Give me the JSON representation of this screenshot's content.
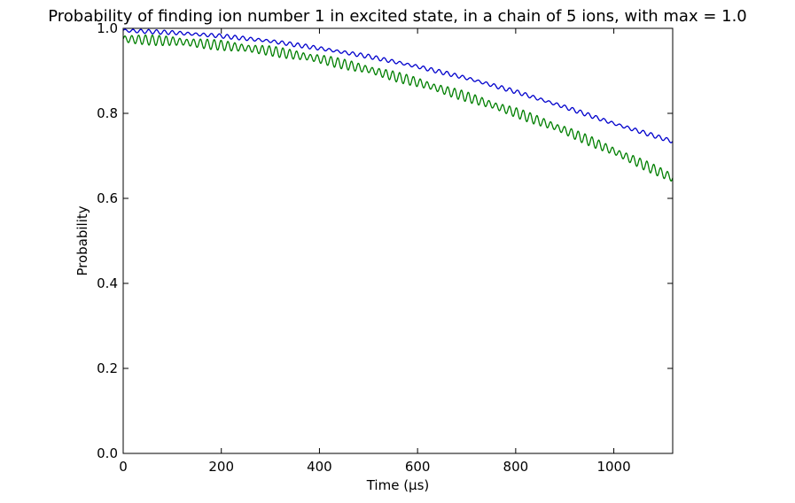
{
  "chart_data": {
    "type": "line",
    "title": "Probability of finding ion number 1 in excited state, in a chain of 5 ions, with max = 1.0",
    "xlabel": "Time (μs)",
    "ylabel": "Probability",
    "xlim": [
      0,
      1120
    ],
    "ylim": [
      0.0,
      1.0
    ],
    "xticks": [
      0,
      200,
      400,
      600,
      800,
      1000
    ],
    "xtick_labels": [
      "0",
      "200",
      "400",
      "600",
      "800",
      "1000"
    ],
    "yticks": [
      0.0,
      0.2,
      0.4,
      0.6,
      0.8,
      1.0
    ],
    "ytick_labels": [
      "0.0",
      "0.2",
      "0.4",
      "0.6",
      "0.8",
      "1.0"
    ],
    "grid": false,
    "legend": "none",
    "series": [
      {
        "color": "#0000cc",
        "x": [
          0,
          100,
          200,
          300,
          400,
          500,
          600,
          700,
          800,
          900,
          1000,
          1120
        ],
        "y": [
          0.995,
          0.99,
          0.982,
          0.97,
          0.953,
          0.934,
          0.91,
          0.883,
          0.851,
          0.815,
          0.776,
          0.734
        ],
        "oscillation": {
          "amplitude": 0.005,
          "period": 16
        }
      },
      {
        "color": "#007f00",
        "x": [
          0,
          100,
          200,
          300,
          400,
          500,
          600,
          700,
          800,
          900,
          1000,
          1120
        ],
        "y": [
          0.975,
          0.97,
          0.96,
          0.947,
          0.928,
          0.903,
          0.873,
          0.839,
          0.802,
          0.76,
          0.711,
          0.648
        ],
        "oscillation": {
          "amplitude": 0.012,
          "period": 14
        }
      }
    ]
  }
}
